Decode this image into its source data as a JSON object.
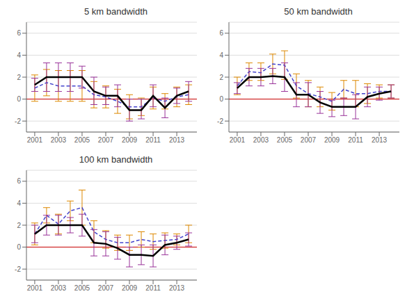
{
  "chart_data": [
    {
      "type": "line",
      "title": "5 km bandwidth",
      "x": [
        2001,
        2002,
        2003,
        2004,
        2005,
        2006,
        2007,
        2008,
        2009,
        2010,
        2011,
        2012,
        2013,
        2014
      ],
      "xlim": [
        2000.3,
        2014.7
      ],
      "xticks": [
        2001,
        2003,
        2005,
        2007,
        2009,
        2011,
        2013
      ],
      "ylim": [
        -3.0,
        7.0
      ],
      "yticks": [
        -2,
        0,
        2,
        4,
        6
      ],
      "grid": true,
      "hline": {
        "value": 0,
        "color": "#cc0000"
      },
      "series": [
        {
          "color": "#4444cc",
          "line_style": "dashed",
          "values": [
            1.0,
            1.5,
            1.2,
            1.2,
            1.2,
            0.4,
            0.2,
            -0.2,
            -0.7,
            -0.7,
            0.1,
            -0.2,
            0.2,
            0.4
          ],
          "error_lo": [
            -0.2,
            0.3,
            -0.2,
            -0.2,
            -0.2,
            -0.8,
            -0.8,
            -1.3,
            -1.8,
            -1.5,
            -0.9,
            -0.9,
            -0.7,
            -0.5
          ],
          "error_hi": [
            2.2,
            2.7,
            2.6,
            2.6,
            2.6,
            1.6,
            1.2,
            0.9,
            0.4,
            0.1,
            1.1,
            0.5,
            1.1,
            1.3
          ],
          "error_color": "#dd8800"
        },
        {
          "color": "#000000",
          "line_style": "solid",
          "values": [
            1.3,
            2.0,
            2.0,
            2.0,
            2.0,
            0.7,
            0.3,
            0.3,
            -1.0,
            -1.0,
            0.3,
            -0.8,
            0.3,
            0.7
          ],
          "error_lo": [
            0.7,
            0.7,
            0.7,
            0.7,
            1.0,
            -0.5,
            -0.5,
            -0.7,
            -2.0,
            -1.8,
            -0.7,
            -1.7,
            -0.4,
            -0.2
          ],
          "error_hi": [
            1.9,
            3.3,
            3.3,
            3.3,
            3.0,
            2.0,
            1.1,
            1.3,
            0.0,
            0.0,
            1.3,
            0.1,
            1.0,
            1.6
          ],
          "error_color": "#993399"
        }
      ]
    },
    {
      "type": "line",
      "title": "50 km bandwidth",
      "x": [
        2001,
        2002,
        2003,
        2004,
        2005,
        2006,
        2007,
        2008,
        2009,
        2010,
        2011,
        2012,
        2013,
        2014
      ],
      "xlim": [
        2000.3,
        2014.7
      ],
      "xticks": [
        2001,
        2003,
        2005,
        2007,
        2009,
        2011,
        2013
      ],
      "ylim": [
        -3.0,
        7.0
      ],
      "yticks": [
        -2,
        0,
        2,
        4,
        6
      ],
      "grid": true,
      "hline": {
        "value": 0,
        "color": "#cc0000"
      },
      "series": [
        {
          "color": "#4444cc",
          "line_style": "dashed",
          "values": [
            1.2,
            2.5,
            2.4,
            3.2,
            3.1,
            1.2,
            0.5,
            0.2,
            -0.2,
            0.9,
            0.5,
            0.5,
            0.7,
            0.7
          ],
          "error_lo": [
            0.4,
            1.7,
            1.7,
            2.3,
            1.8,
            0.1,
            -0.7,
            -0.7,
            -1.0,
            0.1,
            -0.7,
            -0.4,
            0.1,
            0.1
          ],
          "error_hi": [
            2.0,
            3.3,
            3.3,
            4.1,
            4.4,
            2.3,
            1.7,
            1.1,
            0.6,
            1.7,
            1.7,
            1.4,
            1.3,
            1.3
          ],
          "error_color": "#dd8800"
        },
        {
          "color": "#000000",
          "line_style": "solid",
          "values": [
            1.0,
            2.0,
            2.0,
            2.1,
            2.0,
            0.4,
            0.4,
            -0.3,
            -0.7,
            -0.7,
            -0.7,
            0.2,
            0.5,
            0.7
          ],
          "error_lo": [
            0.5,
            1.2,
            1.2,
            1.4,
            0.7,
            -0.7,
            -0.7,
            -1.3,
            -1.6,
            -1.5,
            -1.8,
            -0.7,
            -0.1,
            0.1
          ],
          "error_hi": [
            1.5,
            2.8,
            2.8,
            2.8,
            3.3,
            1.5,
            1.5,
            0.7,
            -0.1,
            0.1,
            0.4,
            1.1,
            1.1,
            1.3
          ],
          "error_color": "#993399"
        }
      ]
    },
    {
      "type": "line",
      "title": "100 km bandwidth",
      "x": [
        2001,
        2002,
        2003,
        2004,
        2005,
        2006,
        2007,
        2008,
        2009,
        2010,
        2011,
        2012,
        2013,
        2014
      ],
      "xlim": [
        2000.3,
        2014.7
      ],
      "xticks": [
        2001,
        2003,
        2005,
        2007,
        2009,
        2011,
        2013
      ],
      "ylim": [
        -3.0,
        7.0
      ],
      "yticks": [
        -2,
        0,
        2,
        4,
        6
      ],
      "grid": true,
      "hline": {
        "value": 0,
        "color": "#cc0000"
      },
      "series": [
        {
          "color": "#4444cc",
          "line_style": "dashed",
          "values": [
            1.2,
            2.9,
            2.1,
            3.3,
            3.6,
            1.4,
            0.7,
            0.4,
            0.4,
            0.7,
            0.5,
            0.6,
            0.7,
            1.2
          ],
          "error_lo": [
            0.2,
            2.2,
            1.2,
            2.4,
            2.0,
            0.4,
            -0.1,
            -0.3,
            -0.3,
            0.0,
            -0.2,
            -0.1,
            0.2,
            0.4
          ],
          "error_hi": [
            2.2,
            3.6,
            3.0,
            4.2,
            5.2,
            2.4,
            1.5,
            1.1,
            1.1,
            1.4,
            1.2,
            1.3,
            1.2,
            2.0
          ],
          "error_color": "#dd8800"
        },
        {
          "color": "#000000",
          "line_style": "solid",
          "values": [
            1.2,
            2.0,
            2.0,
            2.0,
            2.0,
            0.4,
            0.3,
            -0.1,
            -0.7,
            -0.7,
            -0.8,
            0.2,
            0.4,
            0.7
          ],
          "error_lo": [
            0.4,
            1.1,
            1.1,
            1.3,
            1.0,
            -0.8,
            -0.8,
            -1.1,
            -1.8,
            -1.6,
            -1.8,
            -0.7,
            -0.2,
            0.1
          ],
          "error_hi": [
            2.0,
            2.9,
            2.9,
            2.7,
            3.0,
            1.6,
            1.4,
            0.9,
            0.0,
            0.2,
            0.2,
            1.1,
            1.0,
            1.3
          ],
          "error_color": "#993399"
        }
      ]
    }
  ]
}
